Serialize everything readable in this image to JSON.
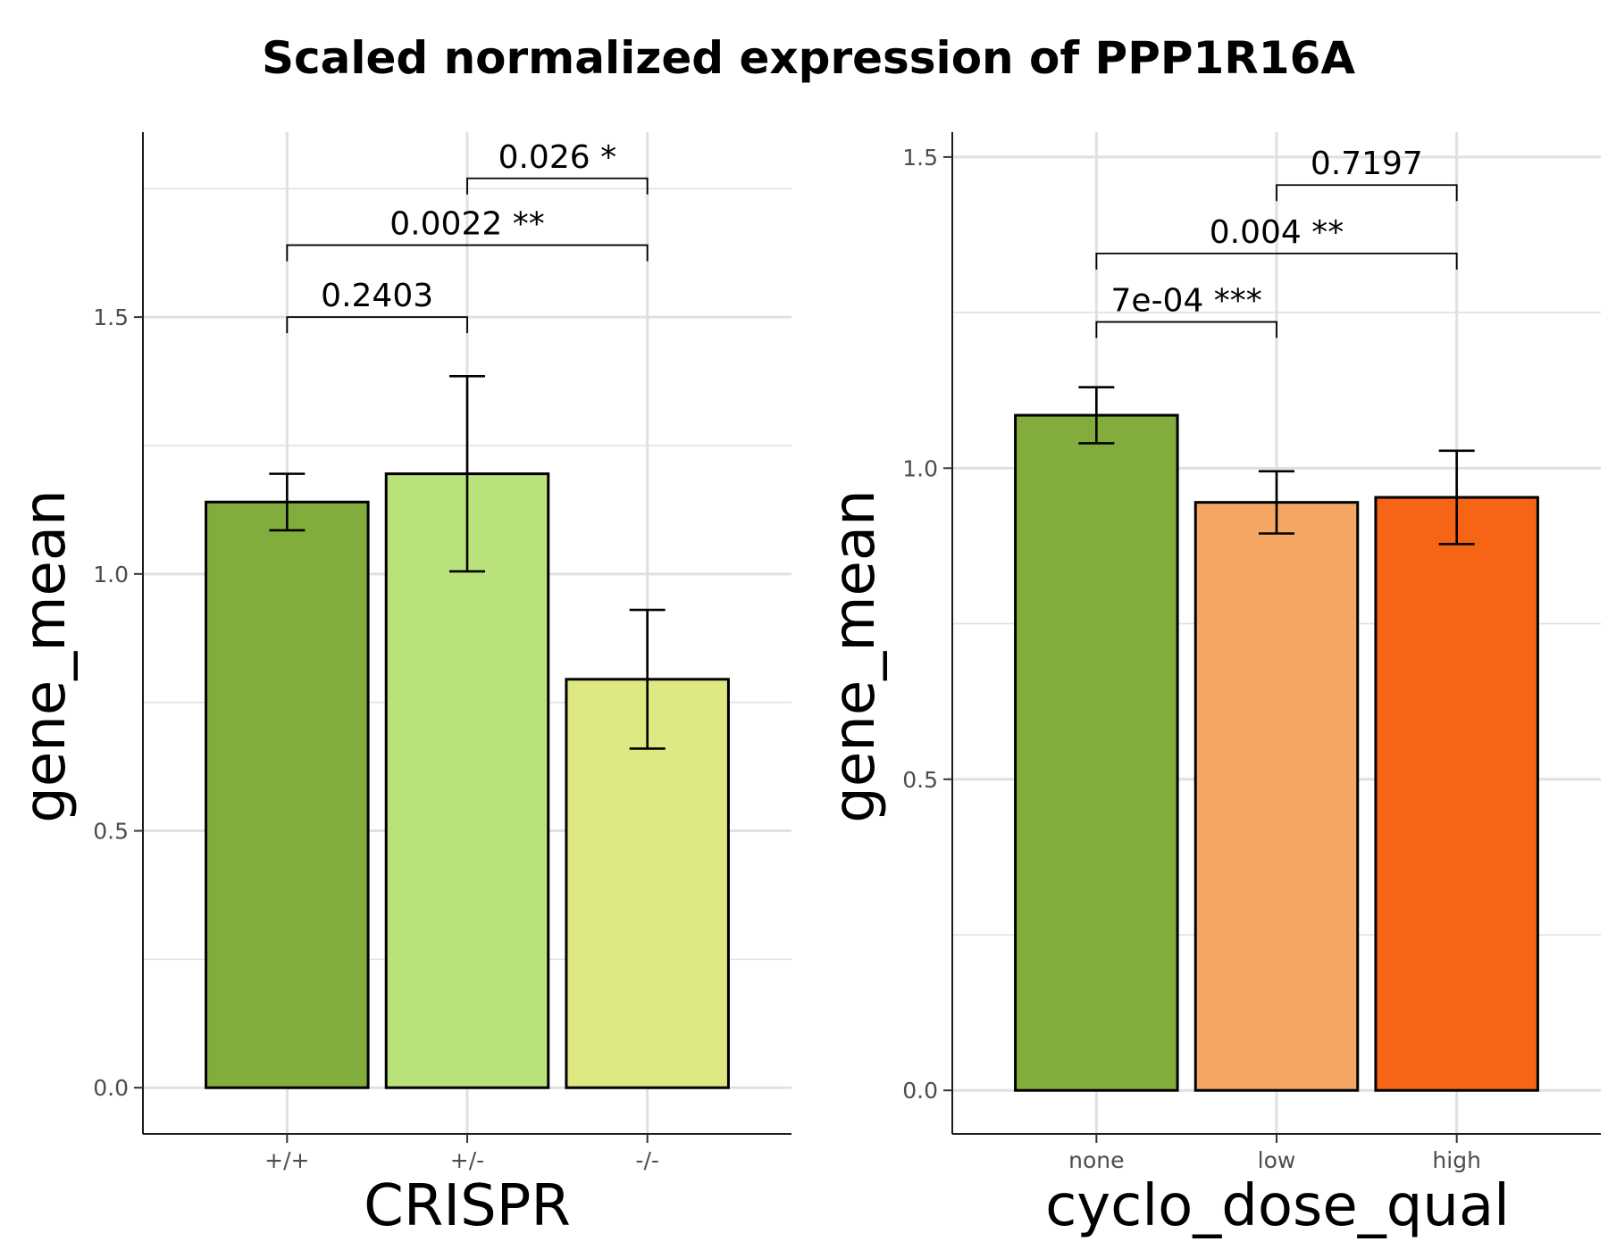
{
  "title": "Scaled normalized expression of PPP1R16A",
  "chart_data": [
    {
      "type": "bar",
      "title": "",
      "xlabel": "CRISPR",
      "ylabel": "gene_mean",
      "categories": [
        "+/+",
        "+/-",
        "-/-"
      ],
      "values": [
        1.14,
        1.195,
        0.795
      ],
      "errors": [
        [
          1.085,
          1.195
        ],
        [
          1.005,
          1.385
        ],
        [
          0.66,
          0.93
        ]
      ],
      "colors": [
        "#82AD3C",
        "#B9E27A",
        "#DDE883"
      ],
      "ylim": [
        -0.09,
        1.86
      ],
      "yticks": [
        0.0,
        0.5,
        1.0,
        1.5
      ],
      "ytick_labels": [
        "0.0",
        "0.5",
        "1.0",
        "1.5"
      ],
      "grid": true,
      "comparisons": [
        {
          "from": 0,
          "to": 1,
          "y": 1.5,
          "label": "0.2403"
        },
        {
          "from": 0,
          "to": 2,
          "y": 1.64,
          "label": "0.0022 **"
        },
        {
          "from": 1,
          "to": 2,
          "y": 1.77,
          "label": "0.026 *"
        }
      ]
    },
    {
      "type": "bar",
      "title": "",
      "xlabel": "cyclo_dose_qual",
      "ylabel": "gene_mean",
      "categories": [
        "none",
        "low",
        "high"
      ],
      "values": [
        1.085,
        0.945,
        0.953
      ],
      "errors": [
        [
          1.04,
          1.13
        ],
        [
          0.895,
          0.995
        ],
        [
          0.878,
          1.028
        ]
      ],
      "colors": [
        "#82AD3C",
        "#F5A663",
        "#F66415"
      ],
      "ylim": [
        -0.07,
        1.54
      ],
      "yticks": [
        0.0,
        0.5,
        1.0,
        1.5
      ],
      "ytick_labels": [
        "0.0",
        "0.5",
        "1.0",
        "1.5"
      ],
      "grid": true,
      "comparisons": [
        {
          "from": 0,
          "to": 1,
          "y": 1.235,
          "label": "7e-04 ***"
        },
        {
          "from": 0,
          "to": 2,
          "y": 1.345,
          "label": "0.004 **"
        },
        {
          "from": 1,
          "to": 2,
          "y": 1.455,
          "label": "0.7197"
        }
      ]
    }
  ]
}
